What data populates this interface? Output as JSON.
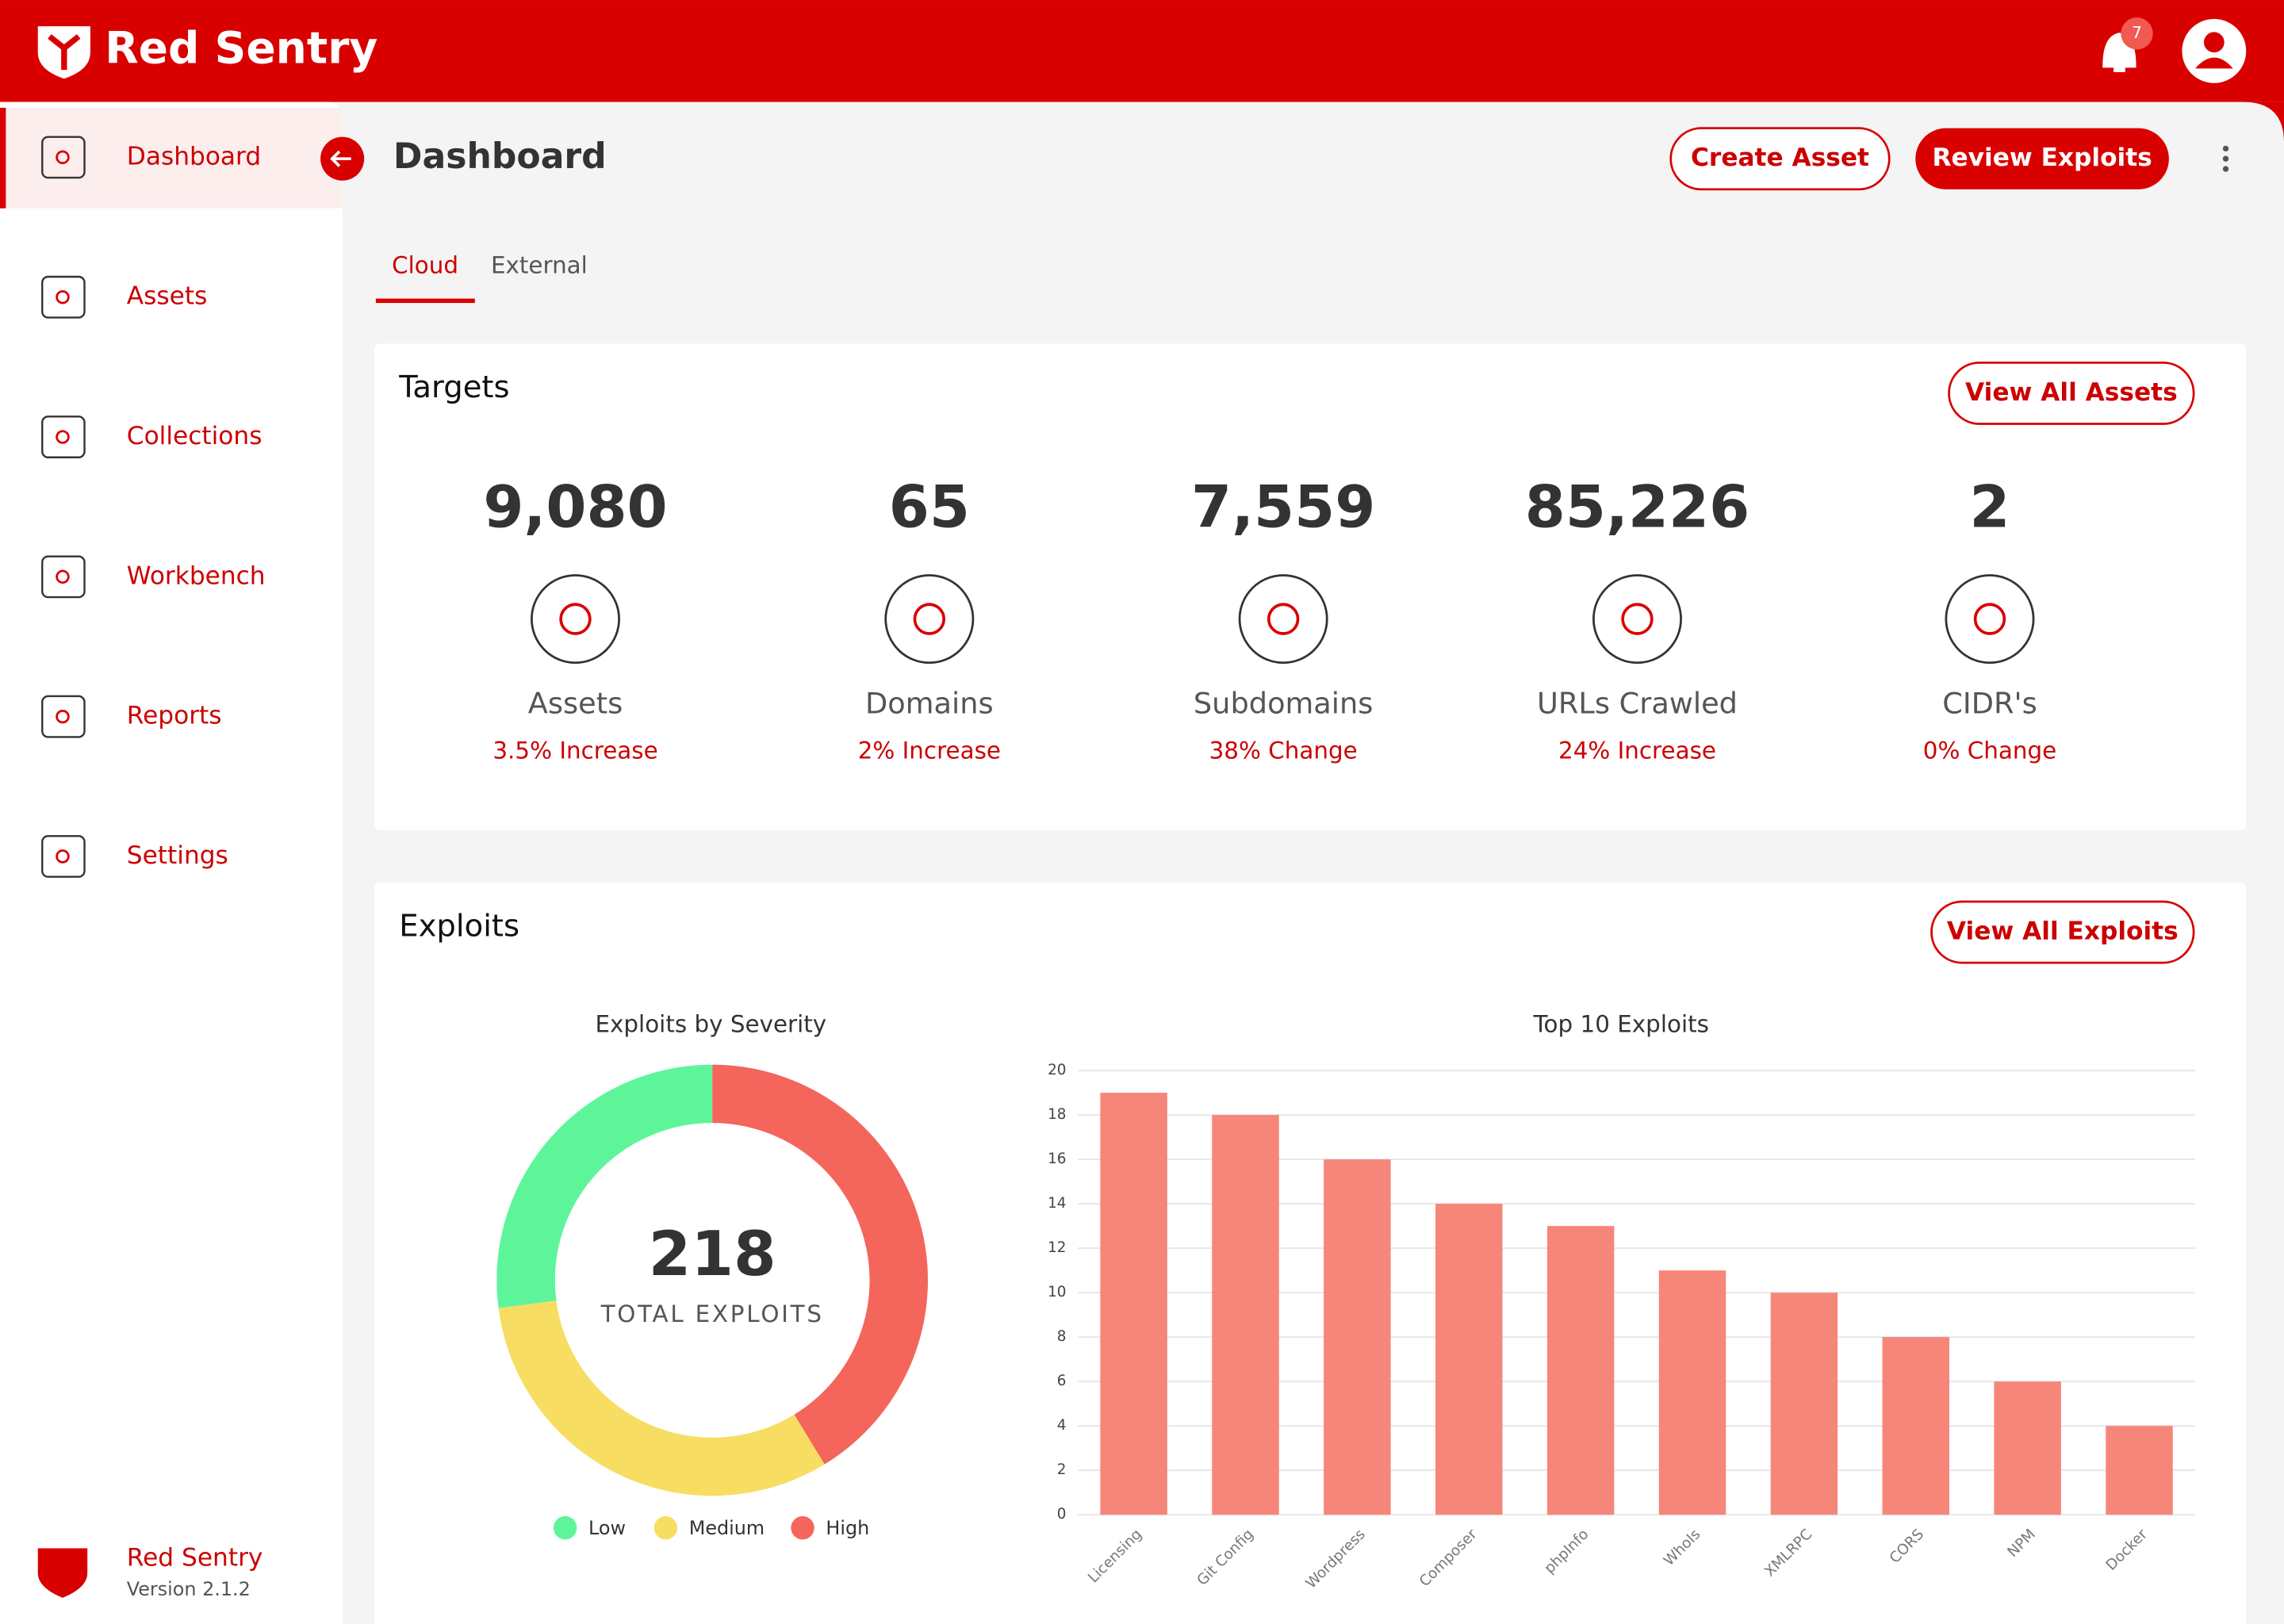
{
  "header": {
    "brand": "Red Sentry",
    "notifications": 7
  },
  "sidebar": {
    "items": [
      "Dashboard",
      "Assets",
      "Collections",
      "Workbench",
      "Reports",
      "Settings"
    ],
    "footer_title": "Red Sentry",
    "footer_version": "Version 2.1.2"
  },
  "page": {
    "title": "Dashboard",
    "buttons": [
      "Create Asset",
      "Review Exploits"
    ],
    "tabs": [
      "Cloud",
      "External"
    ]
  },
  "targets": {
    "title": "Targets",
    "button": "View All Assets",
    "stats": [
      {
        "value": "9,080",
        "label": "Assets",
        "change": "3.5% Increase"
      },
      {
        "value": "65",
        "label": "Domains",
        "change": "2% Increase"
      },
      {
        "value": "7,559",
        "label": "Subdomains",
        "change": "38% Change"
      },
      {
        "value": "85,226",
        "label": "URLs Crawled",
        "change": "24% Increase"
      },
      {
        "value": "2",
        "label": "CIDR's",
        "change": "0% Change"
      }
    ]
  },
  "exploits": {
    "title": "Exploits",
    "button": "View All Exploits"
  },
  "chart_data": [
    {
      "type": "donut",
      "title": "Exploits by Severity",
      "center_value": 218,
      "center_label": "TOTAL EXPLOITS",
      "categories": [
        "Low",
        "Medium",
        "High"
      ],
      "values": [
        59,
        69,
        90
      ],
      "colors": [
        "#5ef59a",
        "#f7dd62",
        "#f4655c"
      ]
    },
    {
      "type": "bar",
      "title": "Top 10 Exploits",
      "categories": [
        "Licensing",
        "Git Config",
        "Wordpress",
        "Composer",
        "phpInfo",
        "WhoIs",
        "XMLRPC",
        "CORS",
        "NPM",
        "Docker"
      ],
      "values": [
        19,
        18,
        16,
        14,
        13,
        11,
        10,
        8,
        6,
        4
      ],
      "color": "#f7867a",
      "ylim": [
        0,
        20
      ],
      "yticks": [
        0,
        2,
        4,
        6,
        8,
        10,
        12,
        14,
        16,
        18,
        20
      ],
      "grid": true
    }
  ]
}
